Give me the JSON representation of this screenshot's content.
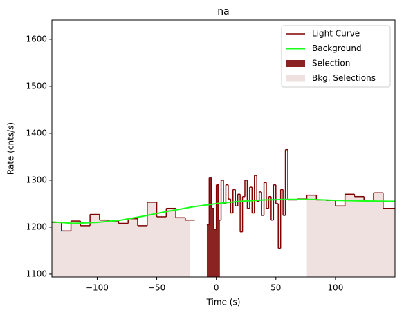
{
  "chart_data": {
    "type": "step",
    "title": "na",
    "xlabel": "Time (s)",
    "ylabel": "Rate (cnts/s)",
    "xlim": [
      -138,
      150
    ],
    "ylim": [
      1094,
      1641
    ],
    "xticks": [
      {
        "value": -100,
        "label": "−100"
      },
      {
        "value": -50,
        "label": "−50"
      },
      0,
      50,
      100
    ],
    "yticks": [
      1100,
      1200,
      1300,
      1400,
      1500,
      1600
    ],
    "legend": "upper right",
    "series": [
      {
        "name": "Light Curve",
        "color": "#800000",
        "x": [
          -138,
          -130,
          -122,
          -114,
          -106,
          -98,
          -90,
          -82,
          -74,
          -66,
          -58,
          -50,
          -42,
          -34,
          -26,
          -18,
          -8,
          -6,
          -4,
          -2,
          0,
          2,
          4,
          6,
          8,
          10,
          12,
          14,
          16,
          18,
          20,
          22,
          24,
          26,
          28,
          30,
          32,
          34,
          36,
          38,
          40,
          42,
          44,
          46,
          48,
          50,
          52,
          54,
          56,
          58,
          60,
          68,
          76,
          84,
          92,
          100,
          108,
          116,
          124,
          132,
          140,
          150
        ],
        "values": [
          1210,
          1192,
          1213,
          1203,
          1227,
          1215,
          1213,
          1208,
          1218,
          1203,
          1253,
          1222,
          1240,
          1220,
          1215,
          null,
          1205,
          1305,
          1240,
          1195,
          1290,
          1215,
          1300,
          1250,
          1290,
          1260,
          1230,
          1280,
          1245,
          1270,
          1190,
          1265,
          1300,
          1240,
          1285,
          1230,
          1310,
          1255,
          1275,
          1225,
          1295,
          1240,
          1265,
          1215,
          1290,
          1250,
          1155,
          1280,
          1225,
          1365,
          1258,
          1260,
          1268,
          1258,
          1257,
          1245,
          1270,
          1265,
          1255,
          1273,
          1240,
          null
        ]
      },
      {
        "name": "Background",
        "color": "#1aff1a",
        "x": [
          -138,
          -120,
          -100,
          -80,
          -60,
          -40,
          -20,
          0,
          20,
          40,
          60,
          80,
          100,
          120,
          150
        ],
        "values": [
          1211,
          1208,
          1210,
          1215,
          1224,
          1234,
          1243,
          1250,
          1255,
          1258,
          1259,
          1259,
          1257,
          1256,
          1255
        ]
      }
    ],
    "regions": [
      {
        "name": "Selection",
        "color": "#8b2323",
        "ranges": [
          [
            -8,
            3
          ]
        ]
      },
      {
        "name": "Bkg. Selections",
        "color": "#f0e1e1",
        "ranges": [
          [
            -138,
            -22
          ],
          [
            76,
            150
          ]
        ]
      }
    ]
  }
}
